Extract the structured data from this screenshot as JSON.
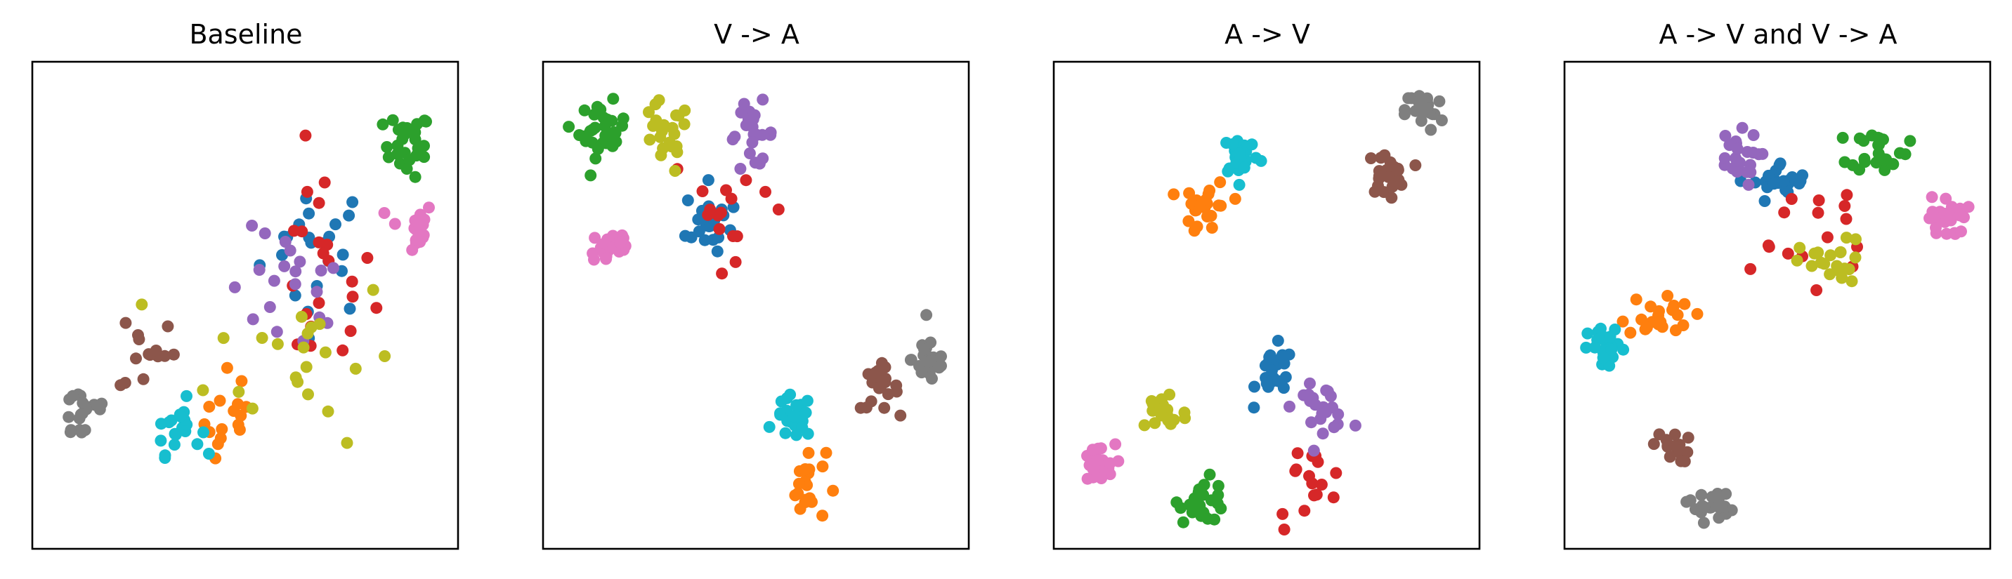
{
  "colors": {
    "c0": "#1f77b4",
    "c1": "#ff7f0e",
    "c2": "#2ca02c",
    "c3": "#d62728",
    "c4": "#9467bd",
    "c5": "#8c564b",
    "c6": "#e377c2",
    "c7": "#7f7f7f",
    "c8": "#bcbd22",
    "c9": "#17becf"
  },
  "chart_data": [
    {
      "type": "scatter",
      "title": "Baseline",
      "xlim": [
        0,
        100
      ],
      "ylim": [
        0,
        100
      ],
      "grid": false,
      "axis_ticks": false,
      "clusters": [
        {
          "class": "c0",
          "cx": 67,
          "cy": 62,
          "spread": [
            12,
            13
          ],
          "n": 22
        },
        {
          "class": "c1",
          "cx": 47,
          "cy": 26,
          "spread": [
            6,
            10
          ],
          "n": 16
        },
        {
          "class": "c2",
          "cx": 88,
          "cy": 83,
          "spread": [
            5,
            6
          ],
          "n": 26
        },
        {
          "class": "c3",
          "cx": 68,
          "cy": 56,
          "spread": [
            11,
            21
          ],
          "n": 22
        },
        {
          "class": "c4",
          "cx": 60,
          "cy": 52,
          "spread": [
            13,
            12
          ],
          "n": 20
        },
        {
          "class": "c5",
          "cx": 27,
          "cy": 41,
          "spread": [
            6,
            9
          ],
          "n": 14
        },
        {
          "class": "c6",
          "cx": 89,
          "cy": 66,
          "spread": [
            5,
            5
          ],
          "n": 16
        },
        {
          "class": "c7",
          "cx": 12,
          "cy": 28,
          "spread": [
            6,
            6
          ],
          "n": 20
        },
        {
          "class": "c8",
          "cx": 64,
          "cy": 40,
          "spread": [
            20,
            16
          ],
          "n": 22
        },
        {
          "class": "c9",
          "cx": 34,
          "cy": 25,
          "spread": [
            5,
            5
          ],
          "n": 20
        }
      ]
    },
    {
      "type": "scatter",
      "title": "V -> A",
      "xlim": [
        0,
        100
      ],
      "ylim": [
        0,
        100
      ],
      "grid": false,
      "axis_ticks": false,
      "clusters": [
        {
          "class": "c0",
          "cx": 39,
          "cy": 67,
          "spread": [
            5,
            7
          ],
          "n": 22
        },
        {
          "class": "c1",
          "cx": 62,
          "cy": 13,
          "spread": [
            4,
            7
          ],
          "n": 20
        },
        {
          "class": "c2",
          "cx": 14,
          "cy": 86,
          "spread": [
            5,
            5
          ],
          "n": 30
        },
        {
          "class": "c3",
          "cx": 45,
          "cy": 71,
          "spread": [
            14,
            10
          ],
          "n": 16
        },
        {
          "class": "c4",
          "cx": 49,
          "cy": 85,
          "spread": [
            5,
            6
          ],
          "n": 22
        },
        {
          "class": "c5",
          "cx": 79,
          "cy": 33,
          "spread": [
            4,
            4
          ],
          "n": 22
        },
        {
          "class": "c6",
          "cx": 16,
          "cy": 62,
          "spread": [
            5,
            4
          ],
          "n": 24
        },
        {
          "class": "c7",
          "cx": 91,
          "cy": 39,
          "spread": [
            4,
            5
          ],
          "n": 24
        },
        {
          "class": "c8",
          "cx": 28,
          "cy": 84,
          "spread": [
            6,
            7
          ],
          "n": 22
        },
        {
          "class": "c9",
          "cx": 59,
          "cy": 27,
          "spread": [
            4,
            4
          ],
          "n": 24
        }
      ]
    },
    {
      "type": "scatter",
      "title": "A -> V",
      "xlim": [
        0,
        100
      ],
      "ylim": [
        0,
        100
      ],
      "grid": false,
      "axis_ticks": false,
      "clusters": [
        {
          "class": "c0",
          "cx": 52,
          "cy": 36,
          "spread": [
            4,
            5
          ],
          "n": 24
        },
        {
          "class": "c1",
          "cx": 36,
          "cy": 70,
          "spread": [
            5,
            5
          ],
          "n": 24
        },
        {
          "class": "c2",
          "cx": 35,
          "cy": 10,
          "spread": [
            5,
            4
          ],
          "n": 28
        },
        {
          "class": "c3",
          "cx": 60,
          "cy": 13,
          "spread": [
            8,
            8
          ],
          "n": 16
        },
        {
          "class": "c4",
          "cx": 63,
          "cy": 29,
          "spread": [
            6,
            4
          ],
          "n": 22
        },
        {
          "class": "c5",
          "cx": 78,
          "cy": 77,
          "spread": [
            4,
            4
          ],
          "n": 24
        },
        {
          "class": "c6",
          "cx": 10,
          "cy": 17,
          "spread": [
            4,
            4
          ],
          "n": 26
        },
        {
          "class": "c7",
          "cx": 87,
          "cy": 90,
          "spread": [
            4,
            4
          ],
          "n": 26
        },
        {
          "class": "c8",
          "cx": 26,
          "cy": 28,
          "spread": [
            5,
            5
          ],
          "n": 22
        },
        {
          "class": "c9",
          "cx": 44,
          "cy": 81,
          "spread": [
            4,
            4
          ],
          "n": 26
        }
      ]
    },
    {
      "type": "scatter",
      "title": "A -> V and V -> A",
      "xlim": [
        0,
        100
      ],
      "ylim": [
        0,
        100
      ],
      "grid": false,
      "axis_ticks": false,
      "clusters": [
        {
          "class": "c0",
          "cx": 51,
          "cy": 75,
          "spread": [
            6,
            4
          ],
          "n": 24
        },
        {
          "class": "c1",
          "cx": 22,
          "cy": 48,
          "spread": [
            7,
            4
          ],
          "n": 22
        },
        {
          "class": "c2",
          "cx": 74,
          "cy": 82,
          "spread": [
            6,
            4
          ],
          "n": 26
        },
        {
          "class": "c3",
          "cx": 55,
          "cy": 63,
          "spread": [
            20,
            16
          ],
          "n": 16
        },
        {
          "class": "c4",
          "cx": 40,
          "cy": 80,
          "spread": [
            5,
            5
          ],
          "n": 24
        },
        {
          "class": "c5",
          "cx": 25,
          "cy": 21,
          "spread": [
            4,
            3
          ],
          "n": 16
        },
        {
          "class": "c6",
          "cx": 90,
          "cy": 68,
          "spread": [
            4,
            4
          ],
          "n": 26
        },
        {
          "class": "c7",
          "cx": 34,
          "cy": 9,
          "spread": [
            5,
            3
          ],
          "n": 22
        },
        {
          "class": "c8",
          "cx": 63,
          "cy": 58,
          "spread": [
            7,
            5
          ],
          "n": 22
        },
        {
          "class": "c9",
          "cx": 10,
          "cy": 41,
          "spread": [
            4,
            4
          ],
          "n": 26
        }
      ]
    }
  ]
}
